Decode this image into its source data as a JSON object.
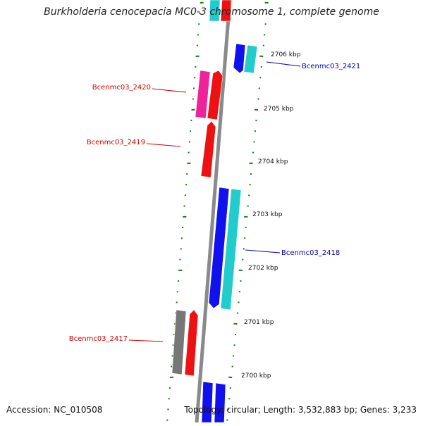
{
  "title": "Burkholderia cenocepacia MC0-3 chromosome 1, complete genome",
  "footer": {
    "accession": "Accession: NC_010508",
    "topology": "Topology: circular; Length: 3,532,883 bp; Genes: 3,233"
  },
  "colors": {
    "backbone": "#8a8a8a",
    "ticks": "#1a7a1a",
    "forward_gene": "#ee1111",
    "forward_gene_alt": "#ee2299",
    "reverse_gene": "#1111ee",
    "reverse_gene_alt": "#22cccc",
    "neutral_gene": "#777777",
    "label_forward": "#cc0000",
    "label_reverse": "#0000bb"
  },
  "ruler": {
    "unit": "kbp",
    "marks": [
      {
        "kbp": 2706,
        "label": "2706 kbp"
      },
      {
        "kbp": 2705,
        "label": "2705 kbp"
      },
      {
        "kbp": 2704,
        "label": "2704 kbp"
      },
      {
        "kbp": 2703,
        "label": "2703 kbp"
      },
      {
        "kbp": 2702,
        "label": "2702 kbp"
      },
      {
        "kbp": 2701,
        "label": "2701 kbp"
      },
      {
        "kbp": 2700,
        "label": "2700 kbp"
      }
    ]
  },
  "gene_labels": [
    {
      "text": "Bcenmc03_2421",
      "strand": "reverse"
    },
    {
      "text": "Bcenmc03_2420",
      "strand": "forward"
    },
    {
      "text": "Bcenmc03_2419",
      "strand": "forward"
    },
    {
      "text": "Bcenmc03_2418",
      "strand": "reverse"
    },
    {
      "text": "Bcenmc03_2417",
      "strand": "forward"
    }
  ]
}
